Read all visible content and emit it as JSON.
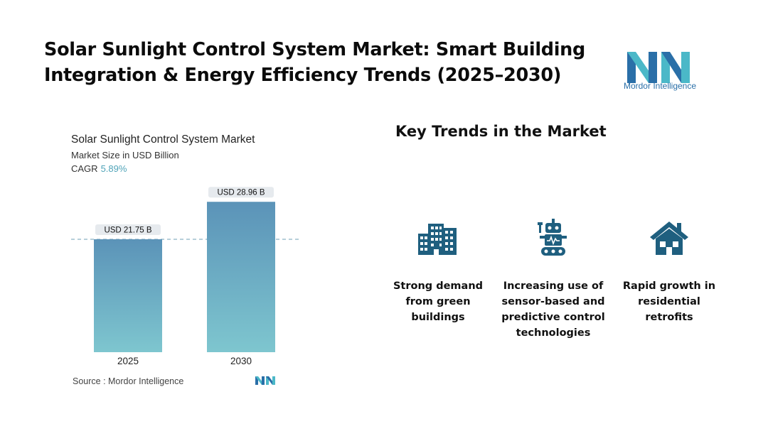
{
  "header": {
    "title": "Solar Sunlight Control System Market: Smart Building Integration & Energy Efficiency Trends (2025–2030)",
    "logo_text": "Mordor Intelligence"
  },
  "chart_panel": {
    "title": "Solar Sunlight Control System Market",
    "subtitle": "Market Size in USD Billion",
    "cagr_label": "CAGR",
    "cagr_value": "5.89%",
    "source": "Source :  Mordor Intelligence"
  },
  "chart_data": {
    "type": "bar",
    "title": "Solar Sunlight Control System Market",
    "ylabel": "Market Size in USD Billion",
    "categories": [
      "2025",
      "2030"
    ],
    "values": [
      21.75,
      28.96
    ],
    "data_labels": [
      "USD 21.75 B",
      "USD 28.96 B"
    ],
    "ylim": [
      0,
      32
    ],
    "grid": false,
    "reference_line": 21.75
  },
  "trends": {
    "heading": "Key Trends in the Market",
    "items": [
      {
        "icon": "buildings-icon",
        "label": "Strong demand from green buildings"
      },
      {
        "icon": "robot-icon",
        "label": "Increasing use of sensor-based and predictive control technologies"
      },
      {
        "icon": "house-icon",
        "label": "Rapid growth in residential retrofits"
      }
    ]
  },
  "colors": {
    "bar_top": "#5b93b8",
    "bar_bottom": "#7ec6cf",
    "icon": "#1f5f7f",
    "accent": "#4fa3b8"
  }
}
